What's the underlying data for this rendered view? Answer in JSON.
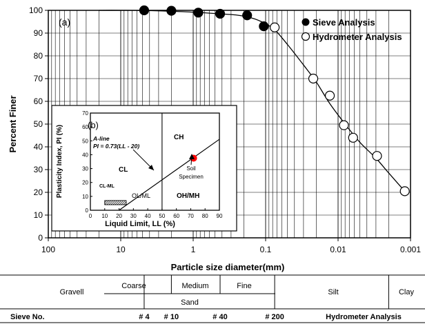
{
  "chart_data": [
    {
      "type": "scatter",
      "panel_label": "(a)",
      "xlabel": "Particle size diameter(mm)",
      "ylabel": "Percent Finer",
      "xscale": "log",
      "xaxis_reversed": true,
      "xlim": [
        100,
        0.001
      ],
      "ylim": [
        0,
        100
      ],
      "x_tick_labels": [
        "100",
        "10",
        "1",
        "0.1",
        "0.01",
        "0.001"
      ],
      "x_ticks": [
        100,
        10,
        1,
        0.1,
        0.01,
        0.001
      ],
      "y_ticks": [
        0,
        10,
        20,
        30,
        40,
        50,
        60,
        70,
        80,
        90,
        100
      ],
      "grid": true,
      "legend_position": "top-right",
      "series": [
        {
          "name": "Sieve Analysis",
          "marker": "filled-circle",
          "x": [
            4.75,
            2.0,
            0.85,
            0.425,
            0.18,
            0.106
          ],
          "y": [
            100,
            99.8,
            99,
            98.5,
            97.8,
            93
          ]
        },
        {
          "name": "Hydrometer Analysis",
          "marker": "open-circle",
          "x": [
            0.075,
            0.022,
            0.013,
            0.0083,
            0.0062,
            0.0029,
            0.0012
          ],
          "y": [
            92.5,
            70,
            62.5,
            49.5,
            44,
            36,
            20.5
          ]
        }
      ],
      "fit_curve": {
        "x": [
          20,
          10,
          3,
          1,
          0.5,
          0.25,
          0.15,
          0.106,
          0.075,
          0.05,
          0.03,
          0.02,
          0.013,
          0.008,
          0.005,
          0.003,
          0.002,
          0.0012
        ],
        "y": [
          100,
          100,
          99.8,
          99.2,
          98.6,
          97.9,
          96.5,
          94.5,
          91.5,
          85,
          76,
          68.5,
          59,
          50,
          42,
          35,
          28.5,
          20.5
        ]
      }
    },
    {
      "type": "scatter",
      "panel_label": "(b)",
      "xlabel": "Liquid Limit, LL (%)",
      "ylabel": "Plasticity Index, PI (%)",
      "xlim": [
        0,
        90
      ],
      "ylim": [
        0,
        70
      ],
      "x_ticks": [
        0,
        10,
        20,
        30,
        40,
        50,
        60,
        70,
        80,
        90
      ],
      "y_ticks": [
        0,
        10,
        20,
        30,
        40,
        50,
        60,
        70
      ],
      "a_line": {
        "label_line1": "A-line",
        "label_line2": "PI = 0.73(LL - 20)",
        "x": [
          20,
          90
        ],
        "y": [
          0,
          51.1
        ]
      },
      "vertical_line_ll": 50,
      "cl_ml_zone": {
        "x": [
          10,
          25
        ],
        "y": [
          4,
          7
        ]
      },
      "region_labels": [
        "CH",
        "CL",
        "CL-ML",
        "OL/ML",
        "OH/MH"
      ],
      "points": [
        {
          "name": "Soil Specimen",
          "label_line1": "Soil",
          "label_line2": "Specimen",
          "x": 72,
          "y": 37.5,
          "color": "#ff0000"
        }
      ]
    }
  ],
  "classification_table": {
    "gravel_label": "Gravell",
    "sand_label": "Sand",
    "coarse_label": "Coarse",
    "medium_label": "Medium",
    "fine_label": "Fine",
    "silt_label": "Silt",
    "clay_label": "Clay",
    "sieve_no_label": "Sieve No.",
    "sieves": [
      {
        "label": "# 4",
        "size_mm": 4.75
      },
      {
        "label": "# 10",
        "size_mm": 2.0
      },
      {
        "label": "# 40",
        "size_mm": 0.425
      },
      {
        "label": "# 200",
        "size_mm": 0.075
      }
    ],
    "hydrometer_label": "Hydrometer Analysis",
    "silt_clay_boundary_mm": 0.002
  },
  "colors": {
    "axis": "#000000",
    "grid": "#000000",
    "specimen": "#ff0000",
    "background": "#ffffff"
  }
}
